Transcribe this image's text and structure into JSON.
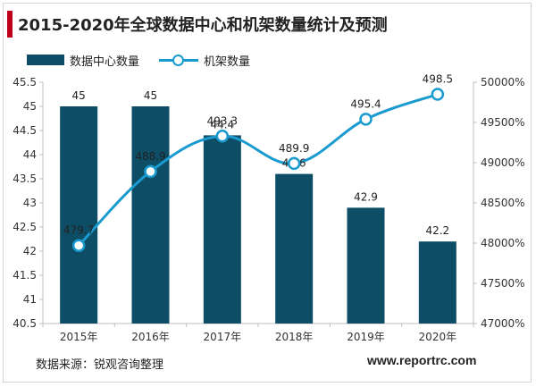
{
  "title": "2015-2020年全球数据中心和机架数量统计及预测",
  "colors": {
    "accent_bar": "#c0001a",
    "bars": "#0e4d66",
    "line": "#1a9bd0"
  },
  "legend": {
    "bars_label": "数据中心数量",
    "line_label": "机架数量"
  },
  "source": "数据来源：锐观咨询整理",
  "website": "www.reportrc.com",
  "chart_data": {
    "type": "bar+line",
    "categories": [
      "2015年",
      "2016年",
      "2017年",
      "2018年",
      "2019年",
      "2020年"
    ],
    "series": [
      {
        "name": "数据中心数量",
        "type": "bar",
        "axis": "left",
        "values": [
          45,
          45,
          44.4,
          43.6,
          42.9,
          42.2
        ],
        "labels": [
          "45",
          "45",
          "44.4",
          "43.6",
          "42.9",
          "42.2"
        ]
      },
      {
        "name": "机架数量",
        "type": "line",
        "axis": "right",
        "values": [
          479.7,
          488.9,
          493.3,
          489.9,
          495.4,
          498.5
        ],
        "labels": [
          "479.7",
          "488.9",
          "493.3",
          "489.9",
          "495.4",
          "498.5"
        ]
      }
    ],
    "left_axis": {
      "ylim": [
        40.5,
        45.5
      ],
      "ticks": [
        "40.5",
        "41",
        "41.5",
        "42",
        "42.5",
        "43",
        "43.5",
        "44",
        "44.5",
        "45",
        "45.5"
      ]
    },
    "right_axis": {
      "ylim": [
        47000,
        50000
      ],
      "ticks": [
        "47000%",
        "47500%",
        "48000%",
        "48500%",
        "49000%",
        "49500%",
        "50000%"
      ]
    },
    "grid": false,
    "legend_position": "top-left"
  }
}
